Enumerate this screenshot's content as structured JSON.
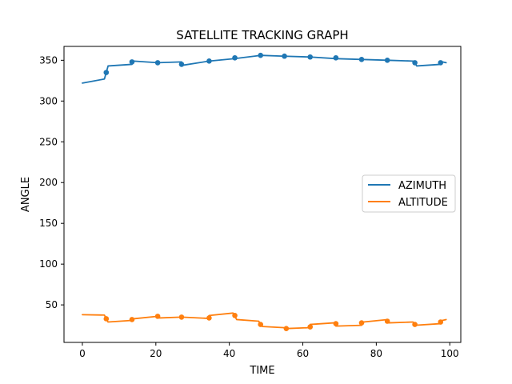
{
  "chart_data": {
    "type": "line",
    "title": "SATELLITE TRACKING GRAPH",
    "xlabel": "TIME",
    "ylabel": "ANGLE",
    "xlim": [
      -5,
      103
    ],
    "ylim": [
      4,
      367
    ],
    "xticks": [
      0,
      20,
      40,
      60,
      80,
      100
    ],
    "yticks": [
      50,
      100,
      150,
      200,
      250,
      300,
      350
    ],
    "grid": false,
    "legend_placement": "center-right",
    "series": [
      {
        "name": "AZIMUTH",
        "color": "#1f77b4",
        "line": [
          [
            0,
            322
          ],
          [
            6,
            327
          ],
          [
            6.5,
            335
          ],
          [
            7,
            343
          ],
          [
            13.5,
            345
          ],
          [
            14,
            349
          ],
          [
            20.5,
            347
          ],
          [
            27,
            348
          ],
          [
            27.5,
            344
          ],
          [
            34.5,
            349
          ],
          [
            41.5,
            352
          ],
          [
            48.5,
            356
          ],
          [
            55,
            355
          ],
          [
            62,
            354
          ],
          [
            69,
            352
          ],
          [
            76,
            351
          ],
          [
            83,
            350
          ],
          [
            90,
            349
          ],
          [
            90.5,
            347
          ],
          [
            91,
            343
          ],
          [
            97.5,
            345
          ],
          [
            98,
            348
          ],
          [
            99,
            347
          ]
        ],
        "markers": [
          [
            6.5,
            335
          ],
          [
            13.5,
            348
          ],
          [
            20.5,
            347
          ],
          [
            27,
            345
          ],
          [
            34.5,
            349
          ],
          [
            41.5,
            353
          ],
          [
            48.5,
            356
          ],
          [
            55,
            355
          ],
          [
            62,
            354
          ],
          [
            69,
            353
          ],
          [
            76,
            351
          ],
          [
            83,
            350
          ],
          [
            90.5,
            347
          ],
          [
            97.5,
            347
          ]
        ]
      },
      {
        "name": "ALTITUDE",
        "color": "#ff7f0e",
        "line": [
          [
            0,
            38
          ],
          [
            6,
            37.5
          ],
          [
            6.5,
            33
          ],
          [
            7,
            29
          ],
          [
            13.5,
            31
          ],
          [
            14,
            33
          ],
          [
            20.5,
            36
          ],
          [
            21,
            34
          ],
          [
            27,
            35
          ],
          [
            34,
            33.5
          ],
          [
            34.5,
            37
          ],
          [
            41,
            40
          ],
          [
            41.5,
            36
          ],
          [
            42,
            32
          ],
          [
            48,
            30
          ],
          [
            48.5,
            26
          ],
          [
            49,
            23.5
          ],
          [
            55,
            22
          ],
          [
            55.5,
            21
          ],
          [
            61.5,
            22
          ],
          [
            62,
            26
          ],
          [
            68.5,
            28
          ],
          [
            69,
            24
          ],
          [
            76,
            25
          ],
          [
            76.5,
            29
          ],
          [
            83,
            32
          ],
          [
            83.5,
            28
          ],
          [
            90,
            29
          ],
          [
            90.5,
            25
          ],
          [
            97.5,
            27
          ],
          [
            98,
            31
          ],
          [
            99,
            32
          ]
        ],
        "markers": [
          [
            6.5,
            33
          ],
          [
            13.5,
            32
          ],
          [
            20.5,
            36
          ],
          [
            27,
            35
          ],
          [
            34.5,
            34
          ],
          [
            41.5,
            37
          ],
          [
            48.5,
            26
          ],
          [
            55.5,
            21
          ],
          [
            62,
            23
          ],
          [
            69,
            27
          ],
          [
            76,
            28
          ],
          [
            83,
            30
          ],
          [
            90.5,
            26
          ],
          [
            97.5,
            29
          ]
        ]
      }
    ]
  }
}
